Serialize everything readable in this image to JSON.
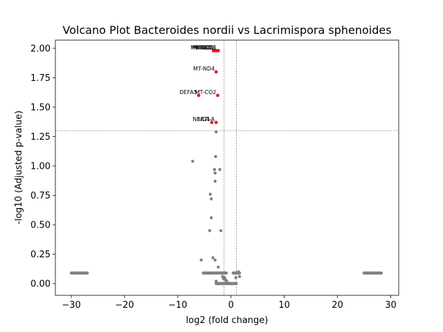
{
  "chart_data": {
    "type": "scatter",
    "title": "Volcano Plot Bacteroides nordii vs Lacrimispora sphenoides",
    "xlabel": "log2 (fold change)",
    "ylabel": "-log10 (Adjusted p-value)",
    "xlim": [
      -33,
      31.5
    ],
    "ylim": [
      -0.1,
      2.07
    ],
    "xticks": [
      -30,
      -20,
      -10,
      0,
      10,
      20,
      30
    ],
    "yticks": [
      0.0,
      0.25,
      0.5,
      0.75,
      1.0,
      1.25,
      1.5,
      1.75,
      2.0
    ],
    "xtick_labels": [
      "−30",
      "−20",
      "−10",
      "0",
      "10",
      "20",
      "30"
    ],
    "ytick_labels": [
      "0.00",
      "0.25",
      "0.50",
      "0.75",
      "1.00",
      "1.25",
      "1.50",
      "1.75",
      "2.00"
    ],
    "thresholds": {
      "x": [
        -1.3,
        1.0
      ],
      "y": 1.3
    },
    "colors": {
      "significant": "#e8191f",
      "not_significant": "#808080",
      "threshold_line": "#808080"
    },
    "grid": false,
    "legend": "none",
    "significant_points": [
      {
        "x": -3.3,
        "y": 1.98,
        "label": "MT-ND5"
      },
      {
        "x": -3.0,
        "y": 1.98,
        "label": "MT-ND6"
      },
      {
        "x": -2.7,
        "y": 1.98,
        "label": "MT-ND3"
      },
      {
        "x": -2.4,
        "y": 1.98,
        "label": "MT-CO1"
      },
      {
        "x": -2.8,
        "y": 1.8,
        "label": "MT-ND4"
      },
      {
        "x": -6.1,
        "y": 1.6,
        "label": "DEFA5"
      },
      {
        "x": -2.5,
        "y": 1.6,
        "label": "MT-CO2"
      },
      {
        "x": -3.6,
        "y": 1.37,
        "label": "NEAT1"
      },
      {
        "x": -2.8,
        "y": 1.37,
        "label": "HLA-A"
      }
    ],
    "points": [
      {
        "x": -7.2,
        "y": 1.04
      },
      {
        "x": -2.9,
        "y": 1.08
      },
      {
        "x": -2.8,
        "y": 1.29
      },
      {
        "x": -3.1,
        "y": 0.97
      },
      {
        "x": -2.1,
        "y": 0.97
      },
      {
        "x": -3.0,
        "y": 0.94
      },
      {
        "x": -3.0,
        "y": 0.87
      },
      {
        "x": -3.9,
        "y": 0.76
      },
      {
        "x": -3.7,
        "y": 0.72
      },
      {
        "x": -3.7,
        "y": 0.56
      },
      {
        "x": -4.0,
        "y": 0.45
      },
      {
        "x": -1.9,
        "y": 0.45
      },
      {
        "x": -3.4,
        "y": 0.22
      },
      {
        "x": -5.6,
        "y": 0.2
      },
      {
        "x": -3.0,
        "y": 0.2
      },
      {
        "x": -2.4,
        "y": 0.14
      },
      {
        "x": 1.4,
        "y": 0.1
      },
      {
        "x": 1.6,
        "y": 0.06
      },
      {
        "x": 0.9,
        "y": 0.05
      },
      {
        "x": -1.6,
        "y": 0.06
      },
      {
        "x": -1.2,
        "y": 0.05
      },
      {
        "x": -1.0,
        "y": 0.03
      },
      {
        "x": -1.4,
        "y": 0.04
      },
      {
        "x": -0.8,
        "y": 0.02
      },
      {
        "x": -2.8,
        "y": 0.02
      },
      {
        "x": -2.5,
        "y": 0.0
      },
      {
        "x": -2.0,
        "y": 0.0
      },
      {
        "x": -1.5,
        "y": 0.0
      },
      {
        "x": -0.5,
        "y": 0.0
      },
      {
        "x": 0.0,
        "y": 0.0
      },
      {
        "x": 0.5,
        "y": 0.0
      },
      {
        "x": 1.0,
        "y": 0.0
      }
    ],
    "point_runs": [
      {
        "x_from": -30.0,
        "x_to": -27.0,
        "y": 0.09
      },
      {
        "x_from": 25.0,
        "x_to": 28.3,
        "y": 0.09
      },
      {
        "x_from": -5.2,
        "x_to": -0.8,
        "y": 0.09
      },
      {
        "x_from": 0.4,
        "x_to": 1.6,
        "y": 0.09
      },
      {
        "x_from": -2.8,
        "x_to": 1.0,
        "y": 0.0
      }
    ]
  }
}
